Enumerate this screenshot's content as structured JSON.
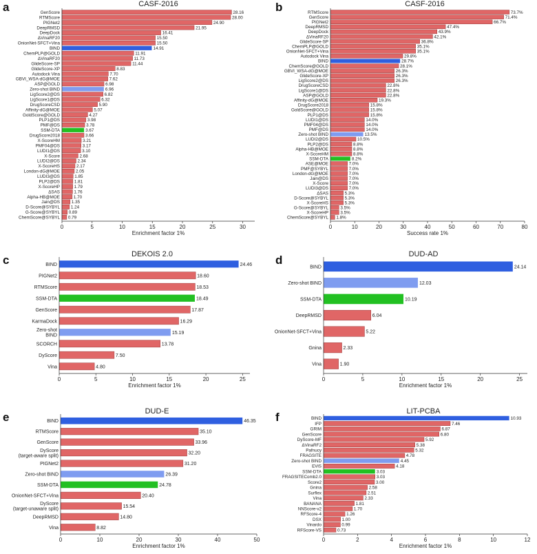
{
  "colors": {
    "red": "#e06666",
    "red_stroke": "#9a3a3a",
    "blue": "#2f5fe0",
    "light_blue": "#7f9cf0",
    "green": "#22c022"
  },
  "chart_data": [
    {
      "panel": "a",
      "type": "bar",
      "orientation": "horizontal",
      "title": "CASF-2016",
      "xlabel": "Enrichment factor 1%",
      "xlim": [
        0,
        32
      ],
      "xticks": [
        0,
        5,
        10,
        15,
        20,
        25,
        30
      ],
      "label_suffix": "",
      "categories": [
        "GenScore",
        "RTMScore",
        "PIGNet2",
        "DeepRMSD",
        "DeepDock",
        "ΔVinaRF20",
        "OnionNet-SFCT+Vina",
        "BIND",
        "ChemPLP@GOLD",
        "ΔVinaRF20",
        "GlideScore-SP",
        "GlideScore-XP",
        "Autodock Vina",
        "GBVI_WSA-dG@MOE",
        "ASP@GOLD",
        "Zero-shot BIND",
        "LigScore2@DS",
        "LigScore1@DS",
        "DrugScoreCSD",
        "Affinity-dG@MOE",
        "GoldScore@GOLD",
        "PLP1@DS",
        "PMF@DS",
        "SSM-DTA",
        "DrugScore2018",
        "X-ScoreHM",
        "PMF04@DS",
        "LUDI1@DS",
        "X-Score",
        "LUDI2@DS",
        "X-ScoreHS",
        "London-dG@MOE",
        "LUDI3@DS",
        "PLP2@DS",
        "X-ScoreHP",
        "ΔSAS",
        "Alpha-HB@MOE",
        "Jain@DS",
        "D-Score@SYBYL",
        "G-Score@SYBYL",
        "ChemScore@SYBYL"
      ],
      "values": [
        28.16,
        28.0,
        24.9,
        21.95,
        16.41,
        15.5,
        15.5,
        14.91,
        11.91,
        11.73,
        11.44,
        8.83,
        7.7,
        7.62,
        6.98,
        6.96,
        6.82,
        6.32,
        5.9,
        5.07,
        4.27,
        3.98,
        3.78,
        3.67,
        3.66,
        3.21,
        3.17,
        3.1,
        2.68,
        2.34,
        2.17,
        2.05,
        1.85,
        1.81,
        1.79,
        1.76,
        1.7,
        1.35,
        1.24,
        0.89,
        0.79
      ],
      "labels": [
        "28.16",
        "28.00",
        "24.90",
        "21.95",
        "16.41",
        "15.50",
        "15.50",
        "14.91",
        "11.91",
        "11.73",
        "11.44",
        "8.83",
        "7.70",
        "7.62",
        "6.98",
        "6.96",
        "6.82",
        "6.32",
        "5.90",
        "5.07",
        "4.27",
        "3.98",
        "3.78",
        "3.67",
        "3.66",
        "3.21",
        "3.17",
        "3.10",
        "2.68",
        "2.34",
        "2.17",
        "2.05",
        "1.85",
        "1.81",
        "1.79",
        "1.76",
        "1.70",
        "1.35",
        "1.24",
        "0.89",
        "0.79"
      ],
      "colors": [
        "red",
        "red",
        "red",
        "red",
        "red",
        "red",
        "red",
        "blue",
        "red",
        "red",
        "red",
        "red",
        "red",
        "red",
        "red",
        "light_blue",
        "red",
        "red",
        "red",
        "red",
        "red",
        "red",
        "red",
        "green",
        "red",
        "red",
        "red",
        "red",
        "red",
        "red",
        "red",
        "red",
        "red",
        "red",
        "red",
        "red",
        "red",
        "red",
        "red",
        "red",
        "red"
      ]
    },
    {
      "panel": "b",
      "type": "bar",
      "orientation": "horizontal",
      "title": "CASF-2016",
      "xlabel": "Success rate 1%",
      "xlim": [
        0,
        80
      ],
      "xticks": [
        0,
        10,
        20,
        30,
        40,
        50,
        60,
        70,
        80
      ],
      "label_suffix": "%",
      "categories": [
        "RTMScore",
        "GenScore",
        "PIGNet2",
        "DeepRMSD",
        "DeepDock",
        "ΔVinaRF20",
        "GlideScore-SP",
        "ChemPLP@GOLD",
        "OnionNet-SFCT+Vina",
        "Autodock Vina",
        "BIND",
        "ChemScore@GOLD",
        "GBVI_WSA-dG@MOE",
        "GlideScore-XP",
        "LigScore2@DS",
        "DrugScoreCSD",
        "LigScore1@DS",
        "ASP@GOLD",
        "Affinity-dG@MOE",
        "DrugScore2018",
        "GoldScore@GOLD",
        "PLP1@DS",
        "LUDI1@DS",
        "PMF04@DS",
        "PMF@DS",
        "Zero-shot BIND",
        "LUDI2@DS",
        "PLP2@DS",
        "Alpha-HB@MOE",
        "X-ScoreHM",
        "SSM-DTA",
        "ASE@MOE",
        "PMF@SYBYL",
        "London-dG@MOE",
        "Jain@DS",
        "X-Score",
        "LUDI3@DS",
        "ΔSAS",
        "D-Score@SYBYL",
        "X-ScoreHS",
        "G-Score@SYBYL",
        "X-ScoreHP",
        "ChemScore@SYBYL"
      ],
      "values": [
        73.7,
        71.4,
        66.7,
        47.4,
        43.9,
        42.1,
        36.8,
        35.1,
        35.1,
        29.8,
        28.7,
        28.1,
        26.3,
        26.3,
        26.3,
        22.8,
        22.8,
        22.8,
        19.3,
        15.8,
        15.8,
        15.8,
        14.0,
        14.0,
        14.0,
        13.5,
        10.5,
        8.8,
        8.8,
        8.8,
        8.2,
        7.0,
        7.0,
        7.0,
        7.0,
        7.0,
        7.0,
        5.3,
        5.3,
        5.3,
        3.5,
        3.5,
        1.8
      ],
      "labels": [
        "73.7",
        "71.4",
        "66.7",
        "47.4",
        "43.9",
        "42.1",
        "36.8",
        "35.1",
        "35.1",
        "29.8",
        "28.7",
        "28.1",
        "26.3",
        "26.3",
        "26.3",
        "22.8",
        "22.8",
        "22.8",
        "19.3",
        "15.8",
        "15.8",
        "15.8",
        "14.0",
        "14.0",
        "14.0",
        "13.5",
        "10.5",
        "8.8",
        "8.8",
        "8.8",
        "8.2",
        "7.0",
        "7.0",
        "7.0",
        "7.0",
        "7.0",
        "7.0",
        "5.3",
        "5.3",
        "5.3",
        "3.5",
        "3.5",
        "1.8"
      ],
      "colors": [
        "red",
        "red",
        "red",
        "red",
        "red",
        "red",
        "red",
        "red",
        "red",
        "red",
        "blue",
        "red",
        "red",
        "red",
        "red",
        "red",
        "red",
        "red",
        "red",
        "red",
        "red",
        "red",
        "red",
        "red",
        "red",
        "light_blue",
        "red",
        "red",
        "red",
        "red",
        "green",
        "red",
        "red",
        "red",
        "red",
        "red",
        "red",
        "red",
        "red",
        "red",
        "red",
        "red",
        "red"
      ]
    },
    {
      "panel": "c",
      "type": "bar",
      "orientation": "horizontal",
      "title": "DEKOIS 2.0",
      "xlabel": "Enrichment factor 1%",
      "xlim": [
        0,
        26
      ],
      "xticks": [
        0,
        5,
        10,
        15,
        20,
        25
      ],
      "label_suffix": "",
      "categories": [
        "BIND",
        "PIGNet2",
        "RTMScore",
        "SSM-DTA",
        "GenScore",
        "KarmaDock",
        "Zero-shot\nBIND",
        "SCORCH",
        "DyScore",
        "Vina"
      ],
      "values": [
        24.46,
        18.6,
        18.53,
        18.49,
        17.87,
        16.29,
        15.19,
        13.78,
        7.5,
        4.8
      ],
      "labels": [
        "24.46",
        "18.60",
        "18.53",
        "18.49",
        "17.87",
        "16.29",
        "15.19",
        "13.78",
        "7.50",
        "4.80"
      ],
      "colors": [
        "blue",
        "red",
        "red",
        "green",
        "red",
        "red",
        "light_blue",
        "red",
        "red",
        "red"
      ]
    },
    {
      "panel": "d",
      "type": "bar",
      "orientation": "horizontal",
      "title": "DUD-AD",
      "xlabel": "Enrichment factor 1%",
      "xlim": [
        0,
        26
      ],
      "xticks": [
        0,
        5,
        10,
        15,
        20,
        25
      ],
      "label_suffix": "",
      "categories": [
        "BIND",
        "Zero-shot BIND",
        "SSM-DTA",
        "DeepRMSD",
        "OnionNet-SFCT+Vina",
        "Gnina",
        "Vina"
      ],
      "values": [
        24.14,
        12.03,
        10.19,
        6.04,
        5.22,
        2.33,
        1.9
      ],
      "labels": [
        "24.14",
        "12.03",
        "10.19",
        "6.04",
        "5.22",
        "2.33",
        "1.90"
      ],
      "colors": [
        "blue",
        "light_blue",
        "green",
        "red",
        "red",
        "red",
        "red"
      ]
    },
    {
      "panel": "e",
      "type": "bar",
      "orientation": "horizontal",
      "title": "DUD-E",
      "xlabel": "Enrichment factor 1%",
      "xlim": [
        0,
        50
      ],
      "xticks": [
        0,
        10,
        20,
        30,
        40,
        50
      ],
      "label_suffix": "",
      "categories": [
        "BIND",
        "RTMScore",
        "GenScore",
        "DyScore\n(target-aware split)",
        "PIGNet2",
        "Zero-shot BIND",
        "SSM-DTA",
        "OnionNet-SFCT+Vina",
        "DyScore\n(target-unaware split)",
        "DeepRMSD",
        "Vina"
      ],
      "values": [
        46.35,
        35.1,
        33.96,
        32.2,
        31.2,
        26.39,
        24.78,
        20.4,
        15.54,
        14.8,
        8.82
      ],
      "labels": [
        "46.35",
        "35.10",
        "33.96",
        "32.20",
        "31.20",
        "26.39",
        "24.78",
        "20.40",
        "15.54",
        "14.80",
        "8.82"
      ],
      "colors": [
        "blue",
        "red",
        "red",
        "red",
        "red",
        "light_blue",
        "green",
        "red",
        "red",
        "red",
        "red"
      ]
    },
    {
      "panel": "f",
      "type": "bar",
      "orientation": "horizontal",
      "title": "LIT-PCBA",
      "xlabel": "Enrichment factor 1%",
      "xlim": [
        0,
        12
      ],
      "xticks": [
        0,
        2,
        4,
        6,
        8,
        10,
        12
      ],
      "label_suffix": "",
      "categories": [
        "BIND",
        "IFP",
        "GRIM",
        "GenScore",
        "DyScore-MF",
        "ΔVinaRF2",
        "Pafnucy",
        "FRAGSITE",
        "Zero-shot BIND",
        "EViS",
        "SSM-DTA",
        "FRAGSITEComb2.0",
        "Score2",
        "Gnina",
        "Surflex",
        "Vina",
        "BANANA",
        "NNScore-v2",
        "RFScore-4",
        "DSX",
        "Vinardo",
        "RFScore-VS"
      ],
      "values": [
        10.93,
        7.46,
        6.87,
        6.8,
        5.92,
        5.38,
        5.32,
        4.78,
        4.45,
        4.18,
        3.03,
        3.03,
        3.0,
        2.58,
        2.51,
        2.33,
        1.81,
        1.7,
        1.26,
        1.0,
        0.99,
        0.73
      ],
      "labels": [
        "10.93",
        "7.46",
        "6.87",
        "6.80",
        "5.92",
        "5.38",
        "5.32",
        "4.78",
        "4.45",
        "4.18",
        "3.03",
        "3.03",
        "3.00",
        "2.58",
        "2.51",
        "2.33",
        "1.81",
        "1.70",
        "1.26",
        "1.00",
        "0.99",
        "0.73"
      ],
      "colors": [
        "blue",
        "red",
        "red",
        "red",
        "red",
        "red",
        "red",
        "red",
        "light_blue",
        "red",
        "green",
        "red",
        "red",
        "red",
        "red",
        "red",
        "red",
        "red",
        "red",
        "red",
        "red",
        "red"
      ]
    }
  ]
}
